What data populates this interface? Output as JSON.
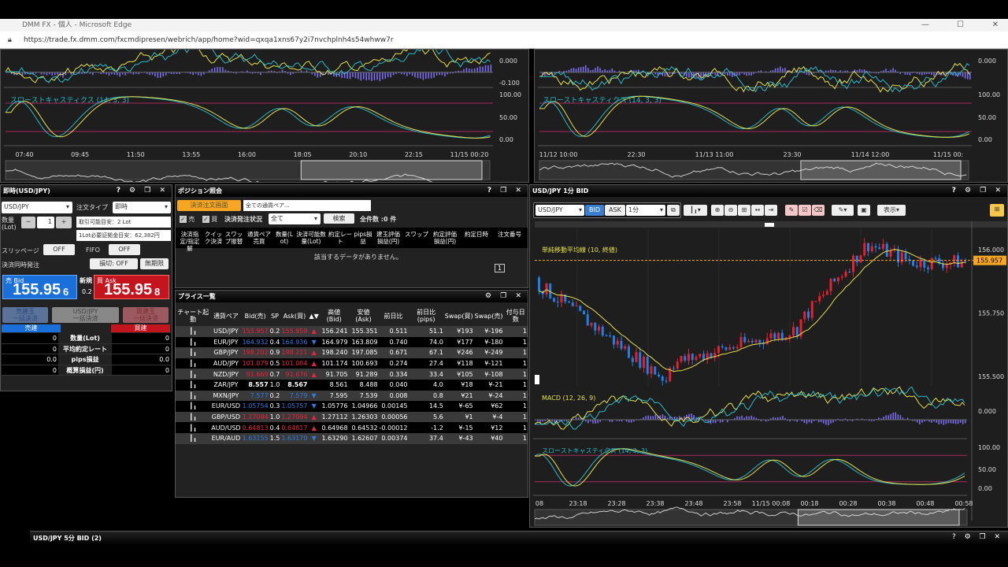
{
  "browser": {
    "title": "DMM FX - 個人 - Microsoft Edge",
    "url": "https://trade.fx.dmm.com/fxcmdipresen/webrich/app/home?wid=qxqa1xns67y2i7nvchplnh4s54whww7r"
  },
  "colors": {
    "bid": "#1a6fd8",
    "ask": "#c4141e",
    "accent": "#f6a623",
    "macd_hist": "#7b6cf0",
    "line_yellow": "#e6e04a",
    "line_cyan": "#2bb8c8",
    "level_line": "#a8285a"
  },
  "top_left_chart": {
    "macd_axis": [
      "0.000",
      "-0.100"
    ],
    "stoch_label": "スローストキャスティクス (14, 3, 3)",
    "stoch_axis": [
      "100.00",
      "50.00",
      "0.00"
    ],
    "time_labels": [
      "07:40",
      "09:45",
      "11:50",
      "13:55",
      "16:00",
      "18:05",
      "20:10",
      "22:15",
      "11/15 00:20"
    ]
  },
  "top_right_chart": {
    "macd_axis": [
      "0.000"
    ],
    "stoch_label": "スローストキャスティクス (14, 3, 3)",
    "stoch_axis": [
      "100.00",
      "50.00",
      "0.00"
    ],
    "time_labels": [
      "11/12 10:00",
      "22:30",
      "11/13 11:00",
      "23:30",
      "11/14 12:00",
      "11/15 00:"
    ]
  },
  "order": {
    "title": "即時(USD/JPY)",
    "pair": "USD/JPY",
    "order_type_label": "注文タイプ",
    "order_type": "即時",
    "qty_label": "数量\n(Lot)",
    "qty": "1",
    "minus": "−",
    "plus": "+",
    "tradable": "取引可能目安：2 Lot",
    "margin": "1Lot必要証拠金目安：62,382円",
    "slippage_label": "スリッページ",
    "slippage": "OFF",
    "fifo_label": "FIFO",
    "fifo": "OFF",
    "simul_label": "決済同時発注",
    "stoploss": "損切: OFF",
    "expiry": "無期限",
    "bid_label": "売 Bid",
    "bid_big": "155.95",
    "bid_small": "6",
    "new_label": "新規",
    "spread": "0.2",
    "ask_label": "買 Ask",
    "ask_big": "155.95",
    "ask_small": "8",
    "close_sell": "売建玉\n一括決済",
    "close_all": "USD/JPY\n一括決済",
    "close_buy": "買建玉\n一括決済",
    "sell_header": "売建",
    "buy_header": "買建",
    "summary": [
      {
        "label": "数量(Lot)",
        "sell": "0",
        "buy": "0"
      },
      {
        "label": "平均約定レート",
        "sell": "0",
        "buy": "0"
      },
      {
        "label": "pips損益",
        "sell": "0.0",
        "buy": "0.0"
      },
      {
        "label": "概算損益(円)",
        "sell": "0",
        "buy": "0"
      }
    ]
  },
  "positions": {
    "title": "ポジション照会",
    "close_btn": "決済注文画面",
    "pair_placeholder": "全ての通貨ペア...",
    "sell_cb": "売",
    "buy_cb": "買",
    "status_label": "決済発注状況",
    "status": "全て",
    "search": "検索",
    "count": "全件数 :0 件",
    "columns": [
      "決済指定/指定解",
      "クイック決済",
      "スワップ振替",
      "通貨ペア売買",
      "数量(Lot)",
      "決済可能数量(Lot)",
      "約定レート",
      "pips損益",
      "建玉評価損益(円)",
      "スワップ",
      "約定評価損益(円)",
      "約定日時",
      "注文番号"
    ],
    "empty": "該当するデータがありません。",
    "page": "1"
  },
  "pricelist": {
    "title": "プライス一覧",
    "columns": [
      "チャート起動",
      "通貨ペア",
      "Bid(売)",
      "SP",
      "Ask(買)",
      "▲▼",
      "高値(Bid)",
      "安値(Ask)",
      "前日比",
      "前日比(pips)",
      "Swap(買)",
      "Swap(売)",
      "付与日数"
    ],
    "rows": [
      {
        "pair": "USD/JPY",
        "bid": "155.957",
        "sp": "0.2",
        "ask": "155.959",
        "dir": "up",
        "high": "156.241",
        "low": "155.351",
        "chg": "0.511",
        "pips": "51.1",
        "swb": "¥193",
        "sws": "¥-196",
        "days": "1"
      },
      {
        "pair": "EUR/JPY",
        "bid": "164.932",
        "sp": "0.4",
        "ask": "164.936",
        "dir": "down",
        "high": "164.979",
        "low": "163.809",
        "chg": "0.740",
        "pips": "74.0",
        "swb": "¥177",
        "sws": "¥-180",
        "days": "1"
      },
      {
        "pair": "GBP/JPY",
        "bid": "198.202",
        "sp": "0.9",
        "ask": "198.211",
        "dir": "up",
        "high": "198.240",
        "low": "197.085",
        "chg": "0.671",
        "pips": "67.1",
        "swb": "¥246",
        "sws": "¥-249",
        "days": "1"
      },
      {
        "pair": "AUD/JPY",
        "bid": "101.079",
        "sp": "0.5",
        "ask": "101.084",
        "dir": "up",
        "high": "101.174",
        "low": "100.693",
        "chg": "0.274",
        "pips": "27.4",
        "swb": "¥118",
        "sws": "¥-121",
        "days": "1"
      },
      {
        "pair": "NZD/JPY",
        "bid": "91.669",
        "sp": "0.7",
        "ask": "91.676",
        "dir": "up",
        "high": "91.705",
        "low": "91.289",
        "chg": "0.334",
        "pips": "33.4",
        "swb": "¥105",
        "sws": "¥-108",
        "days": "1"
      },
      {
        "pair": "ZAR/JPY",
        "bid": "8.557",
        "sp": "1.0",
        "ask": "8.567",
        "dir": "none",
        "high": "8.561",
        "low": "8.488",
        "chg": "0.040",
        "pips": "4.0",
        "swb": "¥18",
        "sws": "¥-21",
        "days": "1"
      },
      {
        "pair": "MXN/JPY",
        "bid": "7.577",
        "sp": "0.2",
        "ask": "7.579",
        "dir": "down",
        "high": "7.595",
        "low": "7.539",
        "chg": "0.008",
        "pips": "0.8",
        "swb": "¥21",
        "sws": "¥-24",
        "days": "1"
      },
      {
        "pair": "EUR/USD",
        "bid": "1.05754",
        "sp": "0.3",
        "ask": "1.05757",
        "dir": "down",
        "high": "1.05776",
        "low": "1.04966",
        "chg": "0.00145",
        "pips": "14.5",
        "swb": "¥-65",
        "sws": "¥62",
        "days": "1"
      },
      {
        "pair": "GBP/USD",
        "bid": "1.27084",
        "sp": "1.0",
        "ask": "1.27094",
        "dir": "up",
        "high": "1.27112",
        "low": "1.26303",
        "chg": "0.00056",
        "pips": "5.6",
        "swb": "¥1",
        "sws": "¥-4",
        "days": "1"
      },
      {
        "pair": "AUD/USD",
        "bid": "0.64813",
        "sp": "0.4",
        "ask": "0.64817",
        "dir": "up",
        "high": "0.64968",
        "low": "0.64532",
        "chg": "-0.00012",
        "pips": "-1.2",
        "swb": "¥-15",
        "sws": "¥12",
        "days": "1"
      },
      {
        "pair": "EUR/AUD",
        "bid": "1.63155",
        "sp": "1.5",
        "ask": "1.63170",
        "dir": "down",
        "high": "1.63290",
        "low": "1.62607",
        "chg": "0.00374",
        "pips": "37.4",
        "swb": "¥-43",
        "sws": "¥40",
        "days": "1"
      }
    ]
  },
  "main_chart": {
    "title": "USD/JPY 1分 BID",
    "pair": "USD/JPY",
    "bid": "BID",
    "ask": "ASK",
    "interval": "1分",
    "display": "表示",
    "sma_label": "単純移動平均線 (10, 終値)",
    "price_axis": [
      "156.000",
      "155.750",
      "155.500"
    ],
    "current_price": "155.957",
    "macd_label": "MACD (12, 26, 9)",
    "macd_axis": [
      "0.000"
    ],
    "stoch_label": "スローストキャスティクス (14, 3, 3)",
    "stoch_axis": [
      "100.00",
      "50.00",
      "0.00"
    ],
    "time_labels": [
      "08",
      "23:18",
      "23:28",
      "23:38",
      "23:48",
      "23:58",
      "11/15 00:08",
      "00:18",
      "00:28",
      "00:38",
      "00:48",
      "00:58"
    ]
  },
  "bottom_panel": {
    "title": "USD/JPY 5分 BID (2)"
  }
}
